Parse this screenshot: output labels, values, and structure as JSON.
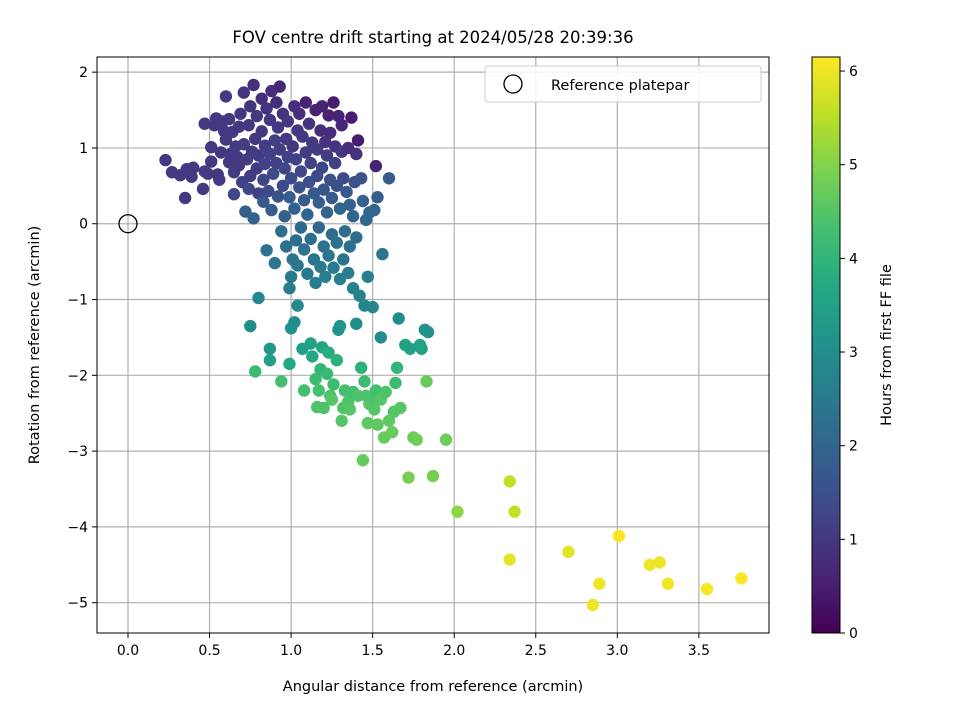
{
  "chart_data": {
    "type": "scatter",
    "title": "FOV centre drift starting at 2024/05/28 20:39:36",
    "xlabel": "Angular distance from reference (arcmin)",
    "ylabel": "Rotation from reference (arcmin)",
    "xlim": [
      -0.19,
      3.93
    ],
    "ylim": [
      -5.4,
      2.2
    ],
    "xticks": [
      0.0,
      0.5,
      1.0,
      1.5,
      2.0,
      2.5,
      3.0,
      3.5
    ],
    "xtick_labels": [
      "0.0",
      "0.5",
      "1.0",
      "1.5",
      "2.0",
      "2.5",
      "3.0",
      "3.5"
    ],
    "yticks": [
      -5,
      -4,
      -3,
      -2,
      -1,
      0,
      1,
      2
    ],
    "ytick_labels": [
      "−5",
      "−4",
      "−3",
      "−2",
      "−1",
      "0",
      "1",
      "2"
    ],
    "grid": true,
    "legend": {
      "position": "top-right",
      "entries": [
        "Reference platepar"
      ]
    },
    "reference_point": {
      "x": 0.0,
      "y": 0.0
    },
    "colorbar": {
      "label": "Hours from first FF file",
      "colormap": "viridis",
      "range": [
        0,
        6.15
      ],
      "ticks": [
        0,
        1,
        2,
        3,
        4,
        5,
        6
      ],
      "tick_labels": [
        "0",
        "1",
        "2",
        "3",
        "4",
        "5",
        "6"
      ]
    },
    "points": [
      [
        0.23,
        0.84,
        1.0
      ],
      [
        0.27,
        0.68,
        1.0
      ],
      [
        0.32,
        0.64,
        1.0
      ],
      [
        0.35,
        0.34,
        1.0
      ],
      [
        0.36,
        0.72,
        1.0
      ],
      [
        0.39,
        0.62,
        1.0
      ],
      [
        0.4,
        0.74,
        1.0
      ],
      [
        0.46,
        0.46,
        1.0
      ],
      [
        0.47,
        0.69,
        1.1
      ],
      [
        0.47,
        1.32,
        1.0
      ],
      [
        0.49,
        0.66,
        1.1
      ],
      [
        0.51,
        0.82,
        1.0
      ],
      [
        0.51,
        1.01,
        1.0
      ],
      [
        0.53,
        1.3,
        1.0
      ],
      [
        0.54,
        1.39,
        1.0
      ],
      [
        0.55,
        0.65,
        1.0
      ],
      [
        0.56,
        0.58,
        1.0
      ],
      [
        0.57,
        0.94,
        1.0
      ],
      [
        0.58,
        1.35,
        1.0
      ],
      [
        0.59,
        1.22,
        1.0
      ],
      [
        0.6,
        1.11,
        1.0
      ],
      [
        0.6,
        1.68,
        1.0
      ],
      [
        0.62,
        0.81,
        1.0
      ],
      [
        0.62,
        1.38,
        1.0
      ],
      [
        0.63,
        0.92,
        1.0
      ],
      [
        0.64,
        1.21,
        1.0
      ],
      [
        0.65,
        0.39,
        1.3
      ],
      [
        0.65,
        0.68,
        1.1
      ],
      [
        0.66,
        1.02,
        1.1
      ],
      [
        0.67,
        0.88,
        1.0
      ],
      [
        0.68,
        0.77,
        1.0
      ],
      [
        0.68,
        1.28,
        1.0
      ],
      [
        0.69,
        1.45,
        1.0
      ],
      [
        0.7,
        0.55,
        1.2
      ],
      [
        0.71,
        1.05,
        1.1
      ],
      [
        0.71,
        1.73,
        0.9
      ],
      [
        0.72,
        0.16,
        1.9
      ],
      [
        0.73,
        0.85,
        1.1
      ],
      [
        0.74,
        1.3,
        1.0
      ],
      [
        0.74,
        0.46,
        1.3
      ],
      [
        0.75,
        1.55,
        0.9
      ],
      [
        0.75,
        0.63,
        1.1
      ],
      [
        0.76,
        0.95,
        1.1
      ],
      [
        0.77,
        1.83,
        0.8
      ],
      [
        0.77,
        0.07,
        2.0
      ],
      [
        0.78,
        1.12,
        1.0
      ],
      [
        0.79,
        0.73,
        1.1
      ],
      [
        0.79,
        1.42,
        1.0
      ],
      [
        0.8,
        0.9,
        1.1
      ],
      [
        0.8,
        0.4,
        1.2
      ],
      [
        0.82,
        1.65,
        0.8
      ],
      [
        0.82,
        1.22,
        1.0
      ],
      [
        0.83,
        0.29,
        1.7
      ],
      [
        0.83,
        0.58,
        1.3
      ],
      [
        0.84,
        0.79,
        1.2
      ],
      [
        0.84,
        1.03,
        1.1
      ],
      [
        0.85,
        1.52,
        0.9
      ],
      [
        0.85,
        -0.35,
        2.3
      ],
      [
        0.86,
        0.43,
        1.4
      ],
      [
        0.87,
        0.92,
        1.2
      ],
      [
        0.87,
        1.37,
        1.0
      ],
      [
        0.88,
        1.75,
        0.8
      ],
      [
        0.88,
        0.18,
        1.8
      ],
      [
        0.89,
        0.66,
        1.4
      ],
      [
        0.9,
        1.1,
        1.1
      ],
      [
        0.9,
        -0.52,
        2.4
      ],
      [
        0.91,
        0.8,
        1.2
      ],
      [
        0.91,
        1.6,
        0.8
      ],
      [
        0.92,
        0.36,
        1.6
      ],
      [
        0.92,
        1.27,
        1.0
      ],
      [
        0.93,
        0.98,
        1.1
      ],
      [
        0.93,
        1.81,
        0.7
      ],
      [
        0.94,
        -0.1,
        2.2
      ],
      [
        0.95,
        0.5,
        1.4
      ],
      [
        0.95,
        1.45,
        0.9
      ],
      [
        0.96,
        0.73,
        1.3
      ],
      [
        0.96,
        0.1,
        1.9
      ],
      [
        0.97,
        -0.3,
        2.3
      ],
      [
        0.97,
        1.12,
        1.0
      ],
      [
        0.98,
        0.88,
        1.2
      ],
      [
        0.98,
        1.35,
        1.0
      ],
      [
        0.99,
        -0.85,
        2.6
      ],
      [
        0.99,
        0.35,
        1.8
      ],
      [
        1.0,
        -0.7,
        2.5
      ],
      [
        1.0,
        0.6,
        1.4
      ],
      [
        1.01,
        -0.47,
        2.4
      ],
      [
        1.01,
        1.02,
        1.0
      ],
      [
        1.02,
        1.55,
        0.8
      ],
      [
        1.02,
        0.2,
        1.9
      ],
      [
        1.03,
        -0.22,
        2.2
      ],
      [
        1.03,
        0.85,
        1.2
      ],
      [
        1.04,
        1.23,
        1.0
      ],
      [
        1.04,
        -0.55,
        2.4
      ],
      [
        1.05,
        0.48,
        1.5
      ],
      [
        1.05,
        1.45,
        0.8
      ],
      [
        1.06,
        -0.05,
        2.1
      ],
      [
        1.06,
        0.69,
        1.3
      ],
      [
        1.07,
        1.15,
        1.0
      ],
      [
        1.08,
        -0.34,
        2.3
      ],
      [
        1.08,
        0.31,
        1.8
      ],
      [
        1.09,
        0.94,
        1.1
      ],
      [
        1.09,
        1.6,
        0.6
      ],
      [
        1.1,
        -0.66,
        2.5
      ],
      [
        1.1,
        0.12,
        2.0
      ],
      [
        1.11,
        0.55,
        1.5
      ],
      [
        1.11,
        1.32,
        0.9
      ],
      [
        1.12,
        -0.2,
        2.2
      ],
      [
        1.12,
        0.8,
        1.2
      ],
      [
        1.13,
        1.07,
        1.0
      ],
      [
        1.14,
        -0.47,
        2.4
      ],
      [
        1.14,
        0.4,
        1.7
      ],
      [
        1.15,
        1.5,
        0.6
      ],
      [
        1.15,
        -0.78,
        2.6
      ],
      [
        1.16,
        0.63,
        1.4
      ],
      [
        1.16,
        0.98,
        1.1
      ],
      [
        1.17,
        -0.05,
        2.1
      ],
      [
        1.17,
        0.28,
        1.8
      ],
      [
        1.18,
        1.23,
        0.8
      ],
      [
        1.18,
        -0.57,
        2.5
      ],
      [
        1.19,
        0.74,
        1.3
      ],
      [
        1.19,
        1.55,
        0.6
      ],
      [
        1.2,
        -0.3,
        2.3
      ],
      [
        1.2,
        0.45,
        1.6
      ],
      [
        1.21,
        1.08,
        0.9
      ],
      [
        1.21,
        -0.7,
        2.6
      ],
      [
        1.22,
        0.15,
        2.0
      ],
      [
        1.22,
        0.9,
        1.1
      ],
      [
        1.23,
        1.43,
        0.6
      ],
      [
        1.23,
        -0.42,
        2.4
      ],
      [
        1.24,
        0.58,
        1.5
      ],
      [
        1.24,
        1.2,
        0.8
      ],
      [
        1.25,
        -0.14,
        2.2
      ],
      [
        1.25,
        0.34,
        1.7
      ],
      [
        1.26,
        1.6,
        0.5
      ],
      [
        1.26,
        -0.58,
        2.5
      ],
      [
        1.27,
        0.8,
        1.2
      ],
      [
        1.27,
        1.02,
        0.9
      ],
      [
        1.28,
        -0.25,
        2.3
      ],
      [
        1.28,
        0.5,
        1.5
      ],
      [
        1.29,
        1.42,
        0.6
      ],
      [
        1.3,
        -0.73,
        2.6
      ],
      [
        1.3,
        0.2,
        2.0
      ],
      [
        1.31,
        0.95,
        1.0
      ],
      [
        1.31,
        1.3,
        0.7
      ],
      [
        1.32,
        -0.47,
        2.4
      ],
      [
        1.32,
        0.6,
        1.4
      ],
      [
        1.33,
        -0.1,
        2.2
      ],
      [
        1.34,
        0.42,
        1.7
      ],
      [
        1.35,
        1.0,
        0.8
      ],
      [
        1.35,
        -0.65,
        2.6
      ],
      [
        1.36,
        0.25,
        1.9
      ],
      [
        1.36,
        -0.3,
        2.3
      ],
      [
        1.37,
        1.4,
        0.5
      ],
      [
        1.38,
        0.1,
        2.0
      ],
      [
        1.38,
        -0.85,
        2.7
      ],
      [
        1.39,
        0.55,
        1.5
      ],
      [
        1.4,
        -0.18,
        2.2
      ],
      [
        1.4,
        0.92,
        0.9
      ],
      [
        1.41,
        1.1,
        0.5
      ],
      [
        1.42,
        -0.95,
        2.7
      ],
      [
        1.43,
        0.6,
        1.6
      ],
      [
        1.44,
        0.3,
        1.9
      ],
      [
        1.45,
        -1.08,
        2.8
      ],
      [
        1.46,
        0.05,
        2.1
      ],
      [
        1.47,
        -0.7,
        2.6
      ],
      [
        1.48,
        0.15,
        2.0
      ],
      [
        1.5,
        -1.1,
        2.8
      ],
      [
        1.51,
        0.18,
        2.0
      ],
      [
        1.52,
        0.76,
        0.6
      ],
      [
        1.53,
        0.35,
        1.8
      ],
      [
        1.55,
        -1.5,
        2.9
      ],
      [
        1.56,
        -0.4,
        2.4
      ],
      [
        1.6,
        0.6,
        1.8
      ],
      [
        0.8,
        -0.98,
        2.8
      ],
      [
        0.75,
        -1.35,
        3.0
      ],
      [
        0.87,
        -1.65,
        3.3
      ],
      [
        0.87,
        -1.8,
        3.5
      ],
      [
        0.78,
        -1.95,
        4.2
      ],
      [
        0.94,
        -2.08,
        4.3
      ],
      [
        0.99,
        -1.85,
        3.7
      ],
      [
        1.0,
        -1.38,
        3.1
      ],
      [
        1.02,
        -1.3,
        3.0
      ],
      [
        1.04,
        -1.08,
        2.9
      ],
      [
        1.07,
        -1.65,
        3.4
      ],
      [
        1.08,
        -2.2,
        4.3
      ],
      [
        1.12,
        -1.58,
        3.5
      ],
      [
        1.13,
        -1.75,
        3.7
      ],
      [
        1.15,
        -2.05,
        4.2
      ],
      [
        1.16,
        -2.42,
        4.4
      ],
      [
        1.17,
        -2.2,
        4.3
      ],
      [
        1.18,
        -1.92,
        4.0
      ],
      [
        1.19,
        -1.63,
        3.6
      ],
      [
        1.2,
        -2.43,
        4.4
      ],
      [
        1.22,
        -1.98,
        4.1
      ],
      [
        1.23,
        -1.7,
        3.8
      ],
      [
        1.24,
        -2.27,
        4.4
      ],
      [
        1.25,
        -2.32,
        4.5
      ],
      [
        1.26,
        -2.12,
        4.2
      ],
      [
        1.28,
        -1.8,
        3.9
      ],
      [
        1.29,
        -1.4,
        3.2
      ],
      [
        1.3,
        -1.35,
        3.1
      ],
      [
        1.31,
        -2.6,
        4.5
      ],
      [
        1.32,
        -2.43,
        4.4
      ],
      [
        1.33,
        -2.2,
        4.3
      ],
      [
        1.35,
        -2.35,
        4.4
      ],
      [
        1.36,
        -2.45,
        4.5
      ],
      [
        1.38,
        -2.22,
        4.3
      ],
      [
        1.4,
        -1.32,
        3.0
      ],
      [
        1.41,
        -2.27,
        4.4
      ],
      [
        1.43,
        -1.9,
        3.9
      ],
      [
        1.44,
        -3.12,
        4.7
      ],
      [
        1.45,
        -2.08,
        4.2
      ],
      [
        1.46,
        -2.27,
        4.4
      ],
      [
        1.47,
        -2.63,
        4.6
      ],
      [
        1.48,
        -2.38,
        4.5
      ],
      [
        1.5,
        -2.3,
        4.4
      ],
      [
        1.51,
        -2.45,
        4.5
      ],
      [
        1.52,
        -2.2,
        4.3
      ],
      [
        1.53,
        -2.65,
        4.6
      ],
      [
        1.55,
        -2.32,
        4.5
      ],
      [
        1.57,
        -2.82,
        4.7
      ],
      [
        1.58,
        -2.22,
        4.4
      ],
      [
        1.6,
        -2.6,
        4.6
      ],
      [
        1.62,
        -2.75,
        4.7
      ],
      [
        1.63,
        -2.48,
        4.5
      ],
      [
        1.64,
        -2.1,
        4.2
      ],
      [
        1.65,
        -1.9,
        4.0
      ],
      [
        1.66,
        -1.25,
        3.0
      ],
      [
        1.67,
        -2.43,
        4.5
      ],
      [
        1.7,
        -1.6,
        3.5
      ],
      [
        1.72,
        -3.35,
        4.9
      ],
      [
        1.73,
        -1.65,
        3.5
      ],
      [
        1.75,
        -2.82,
        4.7
      ],
      [
        1.77,
        -2.85,
        4.8
      ],
      [
        1.79,
        -1.6,
        3.5
      ],
      [
        1.8,
        -1.65,
        3.5
      ],
      [
        1.82,
        -1.4,
        3.1
      ],
      [
        1.83,
        -2.08,
        4.7
      ],
      [
        1.84,
        -1.43,
        3.1
      ],
      [
        1.87,
        -3.33,
        4.9
      ],
      [
        1.95,
        -2.85,
        4.8
      ],
      [
        2.02,
        -3.8,
        5.1
      ],
      [
        2.34,
        -3.4,
        5.6
      ],
      [
        2.34,
        -4.43,
        5.9
      ],
      [
        2.37,
        -3.8,
        5.6
      ],
      [
        2.7,
        -4.33,
        5.9
      ],
      [
        2.85,
        -5.03,
        6.0
      ],
      [
        2.89,
        -4.75,
        6.0
      ],
      [
        3.01,
        -4.12,
        6.1
      ],
      [
        3.2,
        -4.5,
        6.0
      ],
      [
        3.26,
        -4.47,
        6.0
      ],
      [
        3.31,
        -4.75,
        6.0
      ],
      [
        3.55,
        -4.82,
        6.1
      ],
      [
        3.76,
        -4.68,
        6.1
      ]
    ]
  }
}
